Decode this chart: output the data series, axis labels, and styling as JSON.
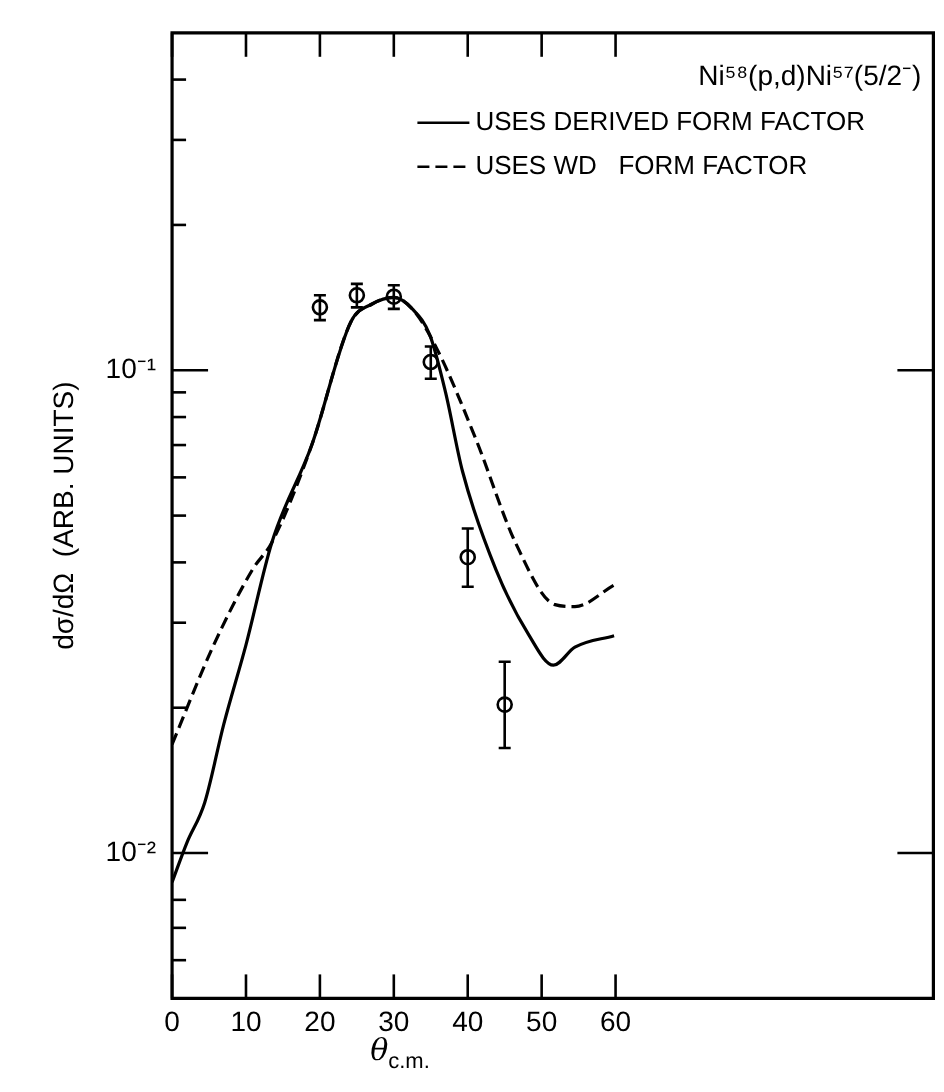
{
  "chart_data": {
    "type": "line",
    "title": "Ni⁵⁸(p,d)Ni⁵⁷(5/2⁻)",
    "xlabel": "θ$_{c.m.}$",
    "ylabel": "dσ/dΩ  (ARB. UNITS)",
    "log": "y",
    "grid": false,
    "legend": "top right",
    "xlim": [
      0,
      103
    ],
    "xticks": [
      0,
      10,
      20,
      30,
      40,
      50,
      60
    ],
    "ylim": [
      0.005,
      0.5
    ],
    "yticks": [
      {
        "value": 0.006,
        "label": null
      },
      {
        "value": 0.007,
        "label": null
      },
      {
        "value": 0.008,
        "label": null
      },
      {
        "value": 0.01,
        "label": "10⁻²"
      },
      {
        "value": 0.02,
        "label": null
      },
      {
        "value": 0.03,
        "label": null
      },
      {
        "value": 0.04,
        "label": null
      },
      {
        "value": 0.05,
        "label": null
      },
      {
        "value": 0.06,
        "label": null
      },
      {
        "value": 0.07,
        "label": null
      },
      {
        "value": 0.08,
        "label": null
      },
      {
        "value": 0.09,
        "label": null
      },
      {
        "value": 0.1,
        "label": "10⁻¹"
      },
      {
        "value": 0.2,
        "label": null
      },
      {
        "value": 0.3,
        "label": null
      },
      {
        "value": 0.4,
        "label": null
      }
    ],
    "series": [
      {
        "name": "USES DERIVED FORM FACTOR",
        "line_style": "solid",
        "color": "#000000",
        "x": [
          0,
          2,
          4.4,
          7,
          10,
          13.5,
          18.9,
          24.2,
          27,
          30,
          32.5,
          34.9,
          37,
          39.3,
          43.8,
          48.2,
          51.6,
          54.5,
          59.8
        ],
        "values": [
          0.0087,
          0.0105,
          0.0127,
          0.0185,
          0.027,
          0.044,
          0.07,
          0.126,
          0.137,
          0.1416,
          0.134,
          0.118,
          0.09,
          0.0617,
          0.0387,
          0.0284,
          0.0245,
          0.0267,
          0.0282
        ]
      },
      {
        "name": "USES WD   FORM FACTOR",
        "line_style": "dashed",
        "color": "#000000",
        "x": [
          0,
          5.5,
          10.9,
          13.5,
          18.9,
          24.2,
          27,
          30,
          32.5,
          35.8,
          41.1,
          46.5,
          51.8,
          54.5,
          59.8
        ],
        "values": [
          0.0168,
          0.0267,
          0.0387,
          0.044,
          0.07,
          0.126,
          0.137,
          0.1416,
          0.134,
          0.111,
          0.072,
          0.0438,
          0.0327,
          0.0324,
          0.0359
        ]
      },
      {
        "type": "scatter",
        "marker": "circle",
        "color": "#000000",
        "x": [
          20,
          25,
          30,
          35,
          40,
          45
        ],
        "values": [
          0.135,
          0.143,
          0.142,
          0.104,
          0.041,
          0.0203
        ],
        "errors": [
          0.008,
          0.008,
          0.008,
          0.008,
          [
            0.0356,
            0.047
          ],
          [
            0.0165,
            0.0249
          ]
        ]
      }
    ]
  }
}
